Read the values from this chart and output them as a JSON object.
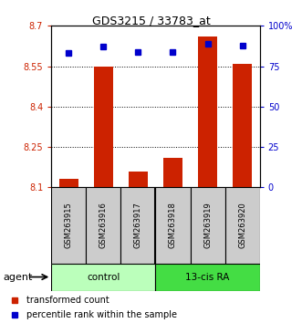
{
  "title": "GDS3215 / 33783_at",
  "samples": [
    "GSM263915",
    "GSM263916",
    "GSM263917",
    "GSM263918",
    "GSM263919",
    "GSM263920"
  ],
  "bar_values": [
    8.13,
    8.55,
    8.16,
    8.21,
    8.66,
    8.56
  ],
  "percentile_values": [
    83,
    87,
    84,
    84,
    89,
    88
  ],
  "ylim_left": [
    8.1,
    8.7
  ],
  "ylim_right": [
    0,
    100
  ],
  "yticks_left": [
    8.1,
    8.25,
    8.4,
    8.55,
    8.7
  ],
  "yticks_right": [
    0,
    25,
    50,
    75,
    100
  ],
  "ytick_labels_left": [
    "8.1",
    "8.25",
    "8.4",
    "8.55",
    "8.7"
  ],
  "ytick_labels_right": [
    "0",
    "25",
    "50",
    "75",
    "100%"
  ],
  "bar_color": "#cc2200",
  "dot_color": "#0000cc",
  "bar_width": 0.55,
  "groups": [
    {
      "label": "control",
      "color": "#bbffbb"
    },
    {
      "label": "13-cis RA",
      "color": "#44dd44"
    }
  ],
  "agent_label": "agent",
  "legend_bar_label": "transformed count",
  "legend_dot_label": "percentile rank within the sample",
  "left_tick_color": "#cc2200",
  "right_tick_color": "#0000cc",
  "sample_box_color": "#cccccc",
  "title_fontsize": 9
}
